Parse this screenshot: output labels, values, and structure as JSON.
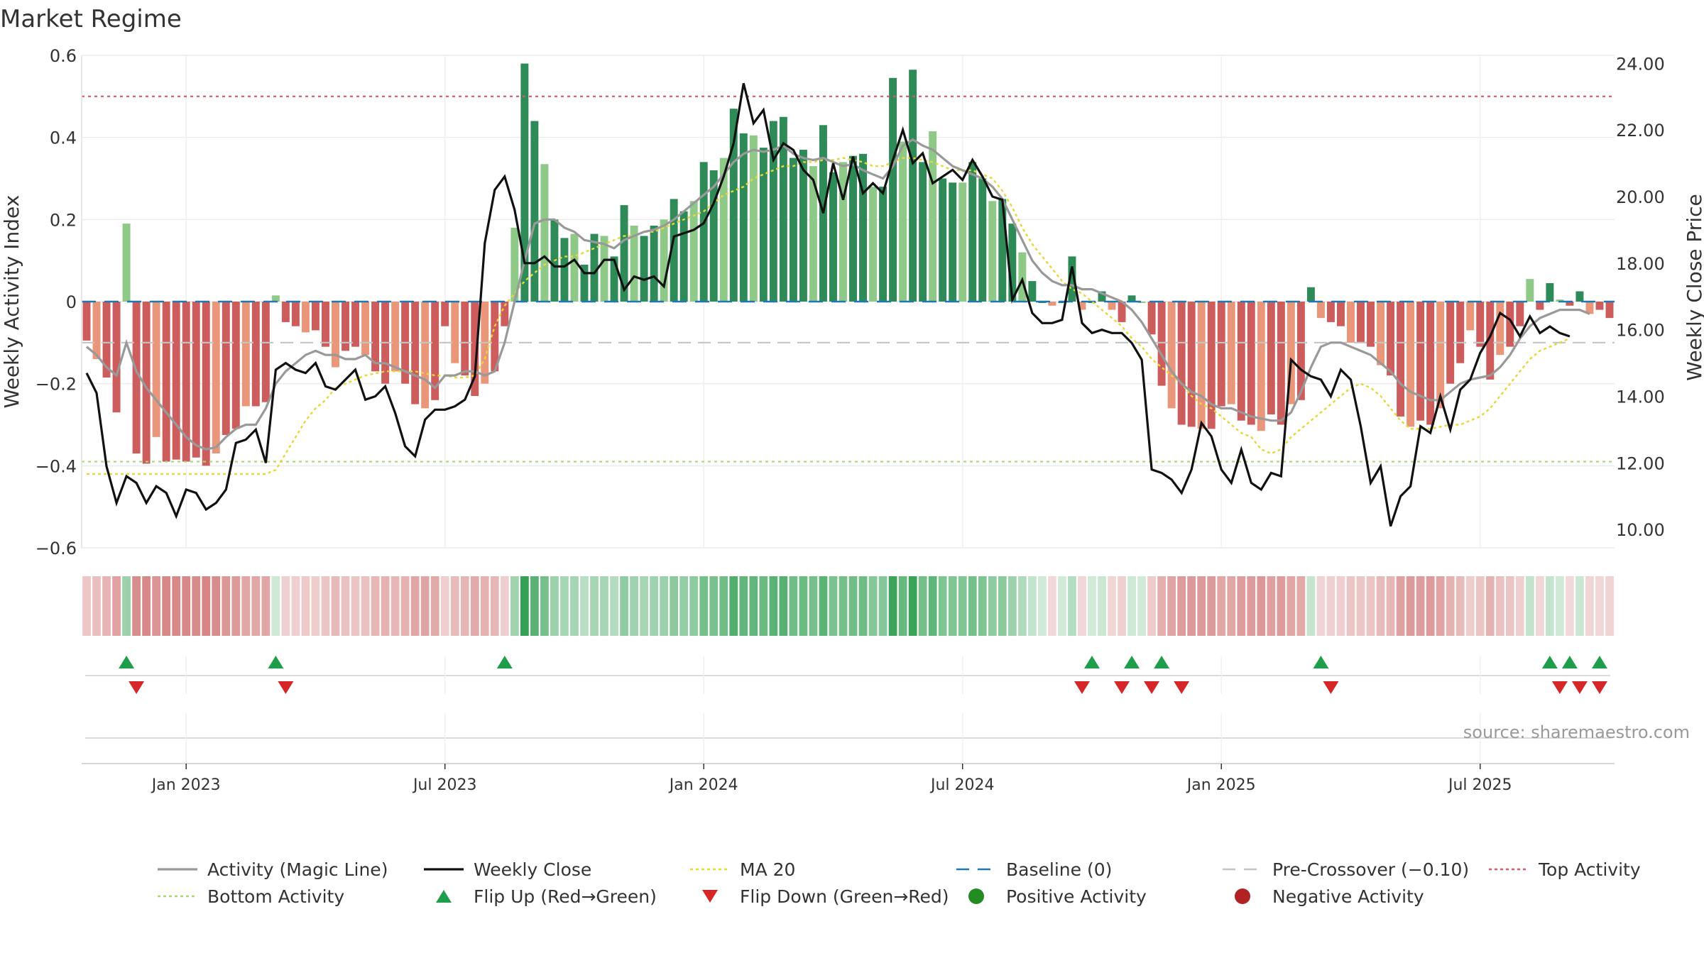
{
  "chart_data": {
    "title": "Market Regime",
    "type": "bar",
    "source": "source: sharemaestro.com",
    "x_ticks": [
      "Jan 2023",
      "Jul 2023",
      "Jan 2024",
      "Jul 2024",
      "Jan 2025",
      "Jul 2025"
    ],
    "left_axis": {
      "label": "Weekly Activity Index",
      "range": [
        -0.6,
        0.6
      ],
      "ticks": [
        "0.6",
        "0.4",
        "0.2",
        "0",
        "−0.2",
        "−0.4",
        "−0.6"
      ]
    },
    "right_axis": {
      "label": "Weekly Close Price",
      "range": [
        9.45,
        24.24
      ],
      "ticks": [
        "24.00",
        "22.00",
        "20.00",
        "18.00",
        "16.00",
        "14.00",
        "12.00",
        "10.00"
      ]
    },
    "reference_lines": {
      "top_activity": 0.5,
      "bottom_activity": -0.39,
      "pre_crossover": -0.1,
      "baseline": 0
    },
    "activity": [
      -0.095,
      -0.14,
      -0.185,
      -0.27,
      0.19,
      -0.37,
      -0.395,
      -0.33,
      -0.39,
      -0.385,
      -0.39,
      -0.38,
      -0.4,
      -0.37,
      -0.325,
      -0.31,
      -0.255,
      -0.255,
      -0.245,
      0.015,
      -0.05,
      -0.06,
      -0.075,
      -0.07,
      -0.11,
      -0.16,
      -0.12,
      -0.11,
      -0.13,
      -0.17,
      -0.2,
      -0.17,
      -0.2,
      -0.25,
      -0.26,
      -0.24,
      -0.06,
      -0.15,
      -0.18,
      -0.23,
      -0.2,
      -0.17,
      -0.06,
      0.18,
      0.58,
      0.44,
      0.335,
      0.2,
      0.155,
      0.165,
      0.09,
      0.165,
      0.16,
      0.11,
      0.235,
      0.185,
      0.16,
      0.185,
      0.2,
      0.25,
      0.22,
      0.245,
      0.34,
      0.32,
      0.35,
      0.47,
      0.41,
      0.405,
      0.375,
      0.44,
      0.45,
      0.35,
      0.37,
      0.33,
      0.43,
      0.315,
      0.34,
      0.355,
      0.36,
      0.28,
      0.28,
      0.545,
      0.39,
      0.565,
      0.34,
      0.415,
      0.3,
      0.29,
      0.29,
      0.34,
      0.3,
      0.245,
      0.25,
      0.19,
      0.12,
      0.05,
      0.0,
      -0.01,
      0.0,
      0.11,
      -0.02,
      0.0,
      0.025,
      -0.02,
      -0.05,
      0.015,
      0.0,
      -0.08,
      -0.205,
      -0.26,
      -0.3,
      -0.305,
      -0.31,
      -0.31,
      -0.255,
      -0.25,
      -0.29,
      -0.3,
      -0.315,
      -0.275,
      -0.3,
      -0.25,
      -0.24,
      0.035,
      -0.04,
      -0.05,
      -0.06,
      -0.1,
      -0.1,
      -0.11,
      -0.155,
      -0.18,
      -0.28,
      -0.305,
      -0.29,
      -0.3,
      -0.26,
      -0.2,
      -0.15,
      -0.07,
      -0.11,
      -0.19,
      -0.13,
      -0.11,
      -0.06,
      0.055,
      -0.02,
      0.045,
      0.005,
      -0.01,
      0.025,
      -0.03,
      -0.02,
      -0.04
    ],
    "weekly_close": [
      14.7,
      14.1,
      11.9,
      10.8,
      11.6,
      11.4,
      10.8,
      11.3,
      11.1,
      10.4,
      11.2,
      11.1,
      10.6,
      10.8,
      11.2,
      12.6,
      12.7,
      13.0,
      12.0,
      14.8,
      15.0,
      14.8,
      14.7,
      15.0,
      14.3,
      14.2,
      14.5,
      14.8,
      13.9,
      14.0,
      14.3,
      13.5,
      12.5,
      12.2,
      13.3,
      13.6,
      13.6,
      13.7,
      13.9,
      14.6,
      18.6,
      20.2,
      20.6,
      19.6,
      18.0,
      18.0,
      18.2,
      17.9,
      17.9,
      18.1,
      17.7,
      17.7,
      18.1,
      18.1,
      17.2,
      17.6,
      17.5,
      17.6,
      17.3,
      18.8,
      18.9,
      19.0,
      19.2,
      19.8,
      20.6,
      21.6,
      23.4,
      22.2,
      22.6,
      21.1,
      21.6,
      21.4,
      20.8,
      20.5,
      19.5,
      21.0,
      19.9,
      21.2,
      20.1,
      20.4,
      20.1,
      21.1,
      22.0,
      21.0,
      21.3,
      20.4,
      20.6,
      20.8,
      20.5,
      21.1,
      20.6,
      20.0,
      19.9,
      16.9,
      17.5,
      16.5,
      16.2,
      16.2,
      16.3,
      17.9,
      16.2,
      15.9,
      16.0,
      15.9,
      15.9,
      15.6,
      15.1,
      11.8,
      11.7,
      11.5,
      11.1,
      11.8,
      13.2,
      12.8,
      11.8,
      11.4,
      12.4,
      11.4,
      11.2,
      11.7,
      11.6,
      15.1,
      14.8,
      14.6,
      14.5,
      14.0,
      14.8,
      14.5,
      13.1,
      11.4,
      11.9,
      10.1,
      11.0,
      11.3,
      13.1,
      12.9,
      14.0,
      13.0,
      14.2,
      14.5,
      15.3,
      15.8,
      16.5,
      16.3,
      15.8,
      16.4,
      15.9,
      16.1,
      15.9,
      15.8
    ],
    "magic_line": [
      -0.11,
      -0.13,
      -0.16,
      -0.18,
      -0.1,
      -0.17,
      -0.21,
      -0.24,
      -0.27,
      -0.3,
      -0.33,
      -0.35,
      -0.36,
      -0.355,
      -0.33,
      -0.31,
      -0.3,
      -0.3,
      -0.26,
      -0.2,
      -0.17,
      -0.15,
      -0.13,
      -0.12,
      -0.13,
      -0.13,
      -0.14,
      -0.14,
      -0.13,
      -0.15,
      -0.15,
      -0.16,
      -0.17,
      -0.18,
      -0.19,
      -0.21,
      -0.18,
      -0.18,
      -0.17,
      -0.17,
      -0.18,
      -0.17,
      -0.1,
      0.0,
      0.1,
      0.19,
      0.2,
      0.2,
      0.18,
      0.17,
      0.15,
      0.145,
      0.14,
      0.13,
      0.15,
      0.16,
      0.17,
      0.175,
      0.185,
      0.2,
      0.22,
      0.24,
      0.26,
      0.28,
      0.31,
      0.34,
      0.36,
      0.37,
      0.365,
      0.37,
      0.38,
      0.36,
      0.35,
      0.345,
      0.35,
      0.34,
      0.33,
      0.335,
      0.32,
      0.31,
      0.3,
      0.33,
      0.38,
      0.395,
      0.38,
      0.37,
      0.35,
      0.33,
      0.32,
      0.31,
      0.3,
      0.28,
      0.25,
      0.2,
      0.15,
      0.1,
      0.07,
      0.05,
      0.04,
      0.04,
      0.03,
      0.03,
      0.02,
      0.01,
      0.0,
      -0.02,
      -0.05,
      -0.09,
      -0.13,
      -0.17,
      -0.2,
      -0.22,
      -0.23,
      -0.25,
      -0.26,
      -0.26,
      -0.27,
      -0.28,
      -0.285,
      -0.29,
      -0.29,
      -0.27,
      -0.22,
      -0.16,
      -0.11,
      -0.1,
      -0.1,
      -0.11,
      -0.12,
      -0.13,
      -0.15,
      -0.17,
      -0.2,
      -0.22,
      -0.23,
      -0.24,
      -0.24,
      -0.22,
      -0.2,
      -0.19,
      -0.185,
      -0.18,
      -0.16,
      -0.13,
      -0.09,
      -0.06,
      -0.04,
      -0.03,
      -0.02,
      -0.02,
      -0.02,
      -0.03
    ],
    "ma20": [
      -0.42,
      -0.42,
      -0.42,
      -0.42,
      -0.42,
      -0.42,
      -0.42,
      -0.42,
      -0.42,
      -0.42,
      -0.42,
      -0.42,
      -0.42,
      -0.42,
      -0.42,
      -0.42,
      -0.42,
      -0.42,
      -0.42,
      -0.41,
      -0.37,
      -0.33,
      -0.29,
      -0.26,
      -0.24,
      -0.21,
      -0.2,
      -0.19,
      -0.18,
      -0.175,
      -0.17,
      -0.17,
      -0.17,
      -0.17,
      -0.175,
      -0.18,
      -0.18,
      -0.185,
      -0.185,
      -0.18,
      -0.14,
      -0.06,
      -0.01,
      0.02,
      0.05,
      0.07,
      0.09,
      0.1,
      0.11,
      0.11,
      0.12,
      0.13,
      0.14,
      0.15,
      0.16,
      0.16,
      0.17,
      0.17,
      0.18,
      0.19,
      0.2,
      0.21,
      0.22,
      0.24,
      0.26,
      0.27,
      0.28,
      0.3,
      0.31,
      0.32,
      0.33,
      0.33,
      0.34,
      0.34,
      0.345,
      0.345,
      0.35,
      0.345,
      0.34,
      0.33,
      0.33,
      0.34,
      0.35,
      0.35,
      0.345,
      0.34,
      0.33,
      0.32,
      0.32,
      0.32,
      0.31,
      0.3,
      0.27,
      0.23,
      0.18,
      0.14,
      0.11,
      0.08,
      0.05,
      0.03,
      0.02,
      0.0,
      -0.02,
      -0.04,
      -0.06,
      -0.09,
      -0.11,
      -0.14,
      -0.16,
      -0.18,
      -0.2,
      -0.23,
      -0.25,
      -0.26,
      -0.28,
      -0.3,
      -0.32,
      -0.33,
      -0.36,
      -0.37,
      -0.36,
      -0.33,
      -0.31,
      -0.29,
      -0.27,
      -0.25,
      -0.23,
      -0.21,
      -0.2,
      -0.21,
      -0.23,
      -0.26,
      -0.29,
      -0.31,
      -0.31,
      -0.31,
      -0.305,
      -0.3,
      -0.3,
      -0.29,
      -0.28,
      -0.26,
      -0.23,
      -0.2,
      -0.17,
      -0.14,
      -0.12,
      -0.11,
      -0.1,
      -0.09
    ],
    "flip_up_weeks": [
      4,
      19,
      42,
      101,
      105,
      108,
      124,
      147,
      149,
      152
    ],
    "flip_down_weeks": [
      5,
      20,
      100,
      104,
      107,
      110,
      125,
      148,
      150,
      152
    ],
    "legend": [
      {
        "label": "Activity (Magic Line)",
        "symbol": "line",
        "color": "#999999"
      },
      {
        "label": "Weekly Close",
        "symbol": "line",
        "color": "#111111"
      },
      {
        "label": "MA 20",
        "symbol": "dotted",
        "color": "#e8d738"
      },
      {
        "label": "Baseline (0)",
        "symbol": "dashed",
        "color": "#1f77b4"
      },
      {
        "label": "Pre-Crossover (−0.10)",
        "symbol": "dashed",
        "color": "#c4c4c4"
      },
      {
        "label": "Top Activity",
        "symbol": "dotted",
        "color": "#d45a6c"
      },
      {
        "label": "Bottom Activity",
        "symbol": "dotted",
        "color": "#a8d878"
      },
      {
        "label": "Flip Up (Red→Green)",
        "symbol": "triangle-up",
        "color": "#1e9e4a"
      },
      {
        "label": "Flip Down (Green→Red)",
        "symbol": "triangle-down",
        "color": "#d62728"
      },
      {
        "label": "Positive Activity",
        "symbol": "dot",
        "color": "#238b22"
      },
      {
        "label": "Negative Activity",
        "symbol": "dot",
        "color": "#b22222"
      }
    ],
    "colors": {
      "strong_positive": "#2e8b57",
      "weak_positive": "#8ec987",
      "strong_negative": "#cd5c5c",
      "weak_negative": "#e9967a"
    }
  }
}
